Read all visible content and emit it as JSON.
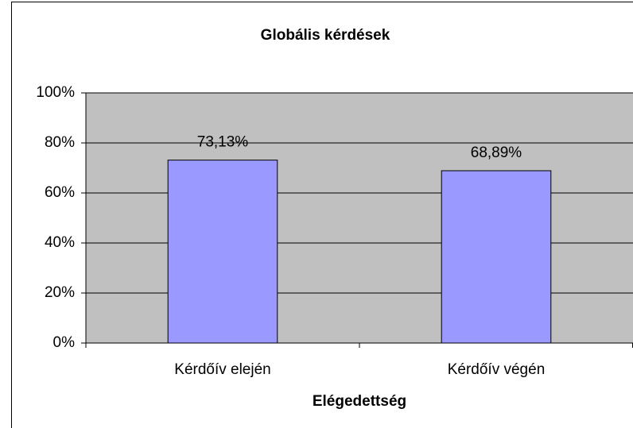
{
  "chart_data": {
    "type": "bar",
    "title": "Globális kérdések",
    "x_label": "Elégedettség",
    "categories": [
      "Kérdőív elején",
      "Kérdőív végén"
    ],
    "values": [
      73.13,
      68.89
    ],
    "value_labels": [
      "73,13%",
      "68,89%"
    ],
    "color": "#9999ff",
    "ylim": [
      0,
      100
    ],
    "yticks": [
      {
        "value": 0,
        "label": "0%"
      },
      {
        "value": 20,
        "label": "20%"
      },
      {
        "value": 40,
        "label": "40%"
      },
      {
        "value": 60,
        "label": "60%"
      },
      {
        "value": 80,
        "label": "80%"
      },
      {
        "value": 100,
        "label": "100%"
      }
    ],
    "grid": true
  }
}
